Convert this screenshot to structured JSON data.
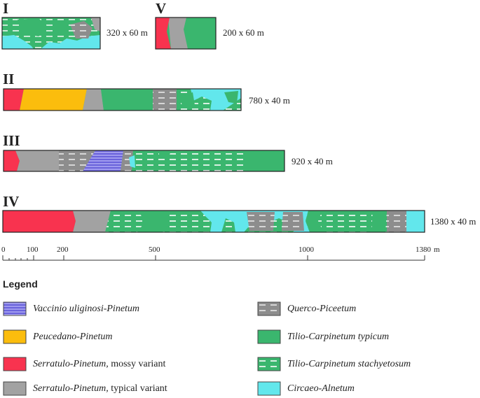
{
  "colors": {
    "vaccinio": "#6a63dc",
    "peucedano": "#fbbd0d",
    "serratulo_mossy": "#f8334f",
    "serratulo_typical": "#a2a2a2",
    "querco": "#8d8d8d",
    "tilio_typicum": "#3ab66e",
    "tilio_stachy": "#3ab66e",
    "circaeo": "#62e7ec"
  },
  "transects": [
    {
      "id": "I",
      "size": "320 x 60 m"
    },
    {
      "id": "V",
      "size": "200 x 60 m"
    },
    {
      "id": "II",
      "size": "780 x 40 m"
    },
    {
      "id": "III",
      "size": "920 x 40 m"
    },
    {
      "id": "IV",
      "size": "1380 x 40 m"
    }
  ],
  "scale": {
    "ticks": [
      "0",
      "100",
      "200",
      "500",
      "1000",
      "1380"
    ],
    "unit": "m"
  },
  "legend": {
    "title": "Legend",
    "items": [
      {
        "key": "vaccinio",
        "name": "Vaccinio uliginosi-Pinetum",
        "suffix": ""
      },
      {
        "key": "peucedano",
        "name": "Peucedano-Pinetum",
        "suffix": ""
      },
      {
        "key": "serratulo_mossy",
        "name": "Serratulo-Pinetum,",
        "suffix": " mossy variant"
      },
      {
        "key": "serratulo_typical",
        "name": "Serratulo-Pinetum,",
        "suffix": " typical variant"
      },
      {
        "key": "querco",
        "name": "Querco-Piceetum",
        "suffix": ""
      },
      {
        "key": "tilio_typicum",
        "name": "Tilio-Carpinetum  typicum",
        "suffix": ""
      },
      {
        "key": "tilio_stachy",
        "name": "Tilio-Carpinetum  stachyetosum",
        "suffix": ""
      },
      {
        "key": "circaeo",
        "name": "Circaeo-Alnetum",
        "suffix": ""
      }
    ]
  }
}
